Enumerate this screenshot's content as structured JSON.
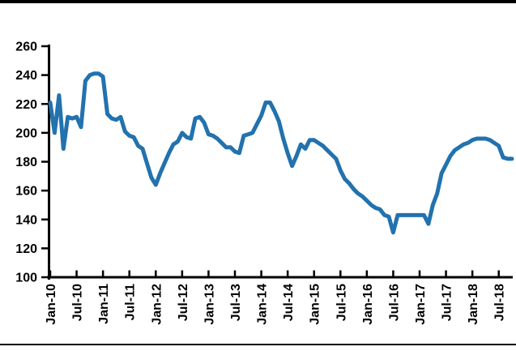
{
  "page": {
    "background": "#ffffff",
    "top_rule_color": "#000000",
    "bottom_rule_color": "#000000"
  },
  "chart_data": {
    "type": "line",
    "title": "",
    "xlabel": "",
    "ylabel": "",
    "grid": false,
    "legend": false,
    "ylim": [
      100,
      260
    ],
    "y_ticks": [
      100,
      120,
      140,
      160,
      180,
      200,
      220,
      240,
      260
    ],
    "x_tick_labels": [
      "Jan-10",
      "Jul-10",
      "Jan-11",
      "Jul-11",
      "Jan-12",
      "Jul-12",
      "Jan-13",
      "Jul-13",
      "Jan-14",
      "Jul-14",
      "Jan-15",
      "Jul-15",
      "Jan-16",
      "Jul-16",
      "Jan-17",
      "Jul-17",
      "Jan-18",
      "Jul-18"
    ],
    "months_per_x_tick": 6,
    "x_start": "Jan-2010",
    "x_end": "Oct-2018",
    "axis_color": "#000000",
    "series": [
      {
        "color": "#2272AE",
        "values": [
          221,
          200,
          226,
          189,
          211,
          210,
          211,
          204,
          236,
          240,
          241,
          241,
          239,
          213,
          210,
          209,
          211,
          201,
          198,
          197,
          191,
          189,
          179,
          169,
          164,
          172,
          179,
          186,
          192,
          194,
          200,
          197,
          196,
          210,
          211,
          207,
          199,
          198,
          196,
          193,
          190,
          190,
          187,
          186,
          198,
          199,
          200,
          206,
          212,
          221,
          221,
          215,
          208,
          196,
          186,
          177,
          184,
          192,
          189,
          195,
          195,
          193,
          191,
          188,
          185,
          182,
          174,
          168,
          165,
          161,
          158,
          156,
          153,
          150,
          148,
          147,
          143,
          142,
          131,
          143,
          143,
          143,
          143,
          143,
          143,
          143,
          137,
          150,
          158,
          172,
          178,
          184,
          188,
          190,
          192,
          193,
          195,
          196,
          196,
          196,
          195,
          193,
          191,
          183,
          182,
          182
        ]
      }
    ]
  }
}
